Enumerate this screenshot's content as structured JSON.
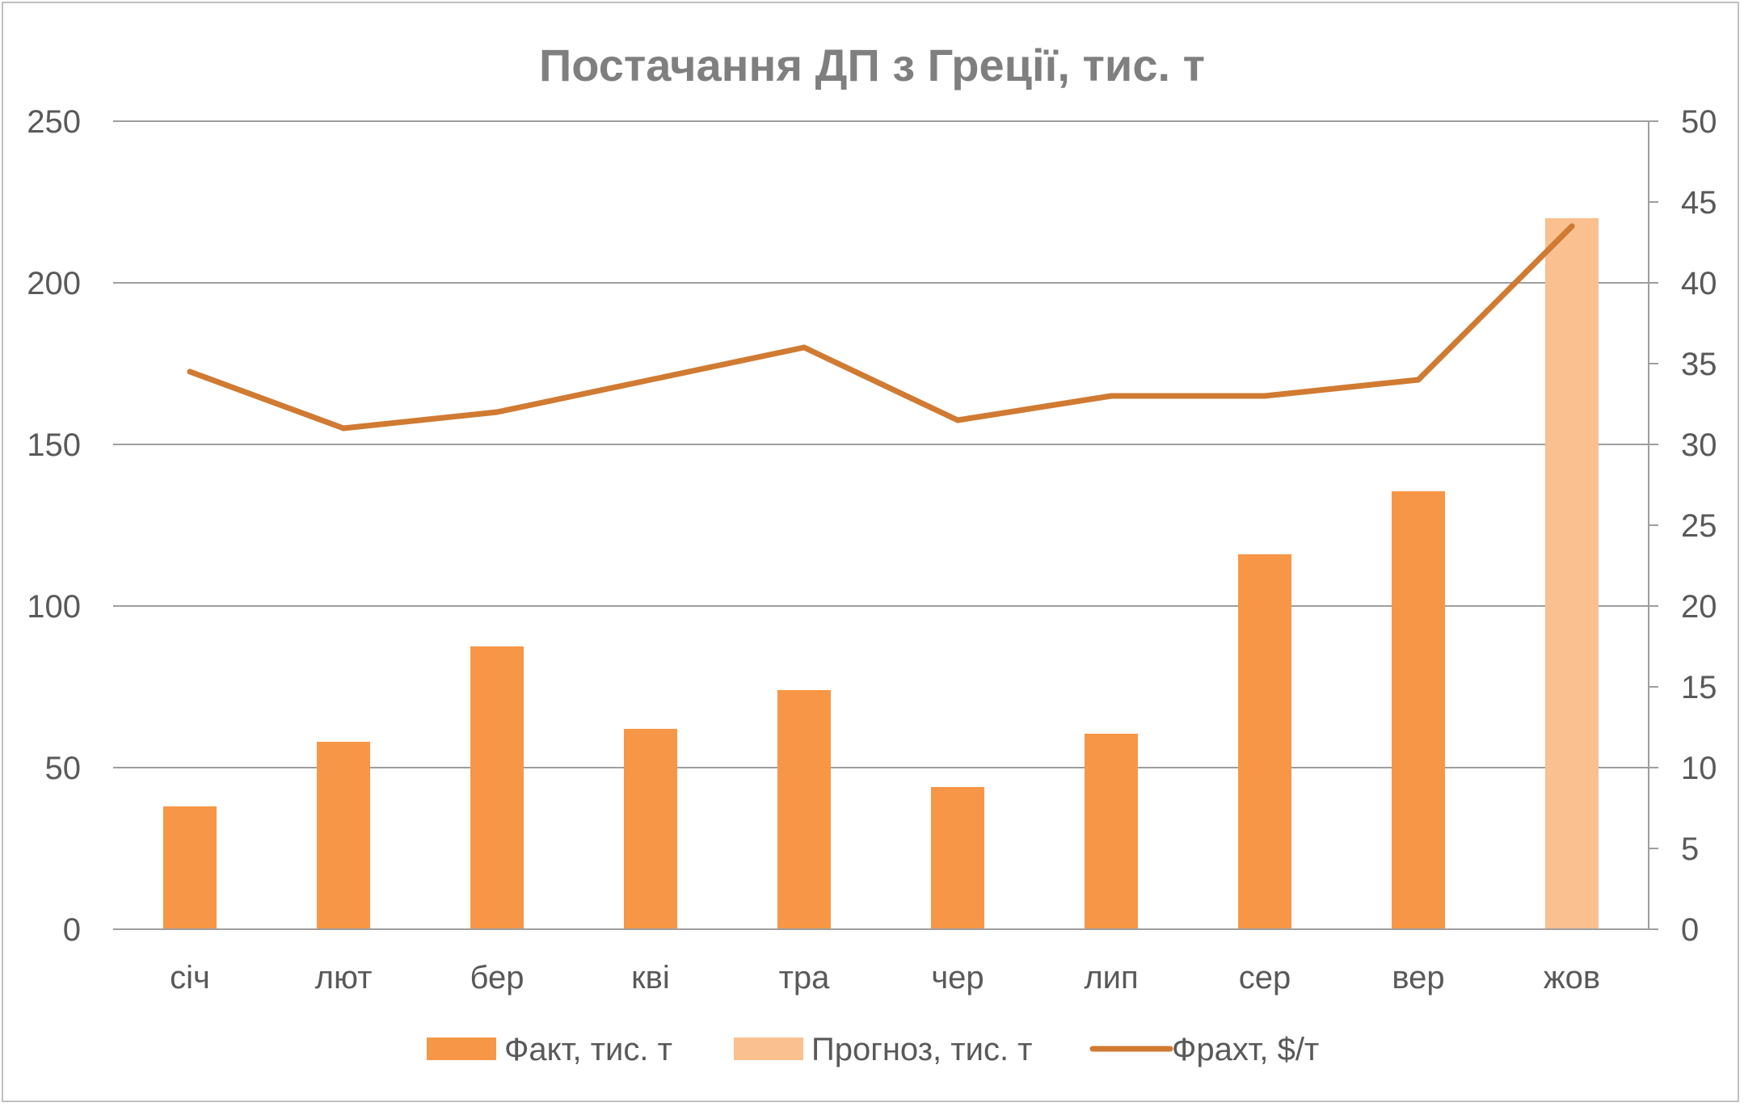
{
  "chart_data": {
    "type": "bar",
    "title": "Постачання ДП з Греції, тис. т",
    "categories": [
      "січ",
      "лют",
      "бер",
      "кві",
      "тра",
      "чер",
      "лип",
      "сер",
      "вер",
      "жов"
    ],
    "series": [
      {
        "name": "Факт, тис. т",
        "type": "bar",
        "axis": "left",
        "color": "#f79646",
        "values": [
          38,
          58,
          87.5,
          62,
          74,
          44,
          60.5,
          116,
          135.5,
          null
        ]
      },
      {
        "name": "Прогноз, тис. т",
        "type": "bar",
        "axis": "left",
        "color": "#fac090",
        "values": [
          null,
          null,
          null,
          null,
          null,
          null,
          null,
          null,
          null,
          220
        ]
      },
      {
        "name": "Фрахт, $/т",
        "type": "line",
        "axis": "right",
        "color": "#d07a32",
        "values": [
          34.5,
          31,
          32,
          34,
          36,
          31.5,
          33,
          33,
          34,
          43.5
        ]
      }
    ],
    "y_left": {
      "min": 0,
      "max": 250,
      "ticks": [
        "0",
        "50",
        "100",
        "150",
        "200",
        "250"
      ]
    },
    "y_right": {
      "min": 0,
      "max": 50,
      "ticks": [
        "0",
        "5",
        "10",
        "15",
        "20",
        "25",
        "30",
        "35",
        "40",
        "45",
        "50"
      ]
    },
    "grid": true,
    "legend_position": "bottom"
  }
}
